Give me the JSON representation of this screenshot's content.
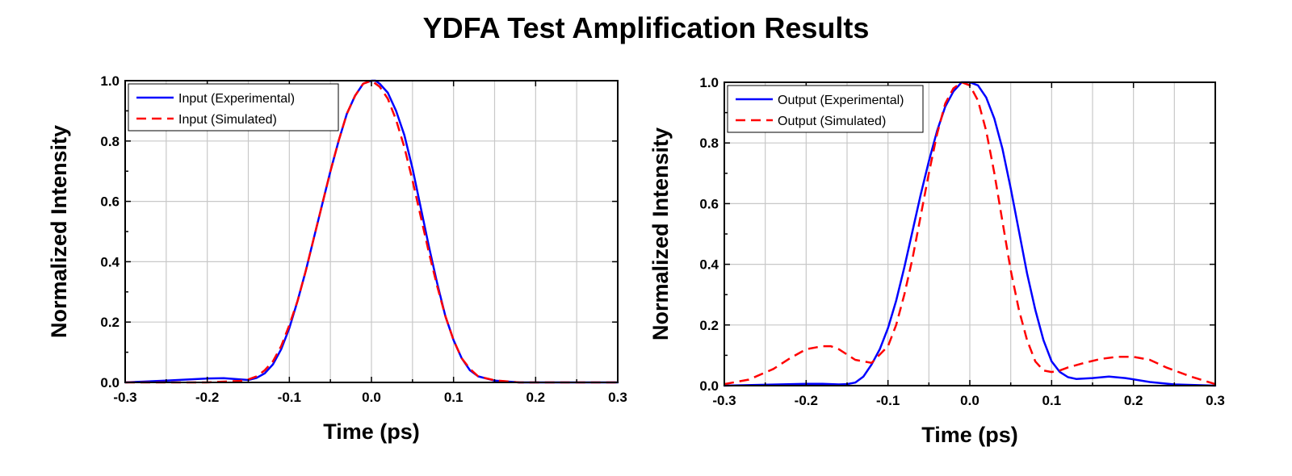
{
  "title": "YDFA Test Amplification Results",
  "chart_data": [
    {
      "type": "line",
      "xlabel": "Time (ps)",
      "ylabel": "Normalized Intensity",
      "xlim": [
        -0.3,
        0.3
      ],
      "ylim": [
        0,
        1.0
      ],
      "xticks": [
        -0.3,
        -0.2,
        -0.1,
        0.0,
        0.1,
        0.2,
        0.3
      ],
      "xtick_labels": [
        "-0.3",
        "-0.2",
        "-0.1",
        "0.0",
        "0.1",
        "0.2",
        "0.3"
      ],
      "yticks": [
        0.0,
        0.2,
        0.4,
        0.6,
        0.8,
        1.0
      ],
      "ytick_labels": [
        "0.0",
        "0.2",
        "0.4",
        "0.6",
        "0.8",
        "1.0"
      ],
      "grid": true,
      "legend_position": "top-left",
      "series": [
        {
          "name": "Input (Experimental)",
          "color": "#0000ff",
          "style": "solid",
          "x": [
            -0.3,
            -0.25,
            -0.2,
            -0.18,
            -0.16,
            -0.15,
            -0.14,
            -0.13,
            -0.12,
            -0.11,
            -0.1,
            -0.09,
            -0.08,
            -0.07,
            -0.06,
            -0.05,
            -0.04,
            -0.03,
            -0.02,
            -0.01,
            0.0,
            0.005,
            0.01,
            0.02,
            0.03,
            0.04,
            0.05,
            0.06,
            0.07,
            0.08,
            0.09,
            0.1,
            0.11,
            0.12,
            0.13,
            0.15,
            0.18,
            0.2,
            0.25,
            0.3
          ],
          "y": [
            0.0,
            0.006,
            0.013,
            0.014,
            0.01,
            0.008,
            0.015,
            0.03,
            0.06,
            0.11,
            0.18,
            0.27,
            0.37,
            0.48,
            0.59,
            0.7,
            0.8,
            0.89,
            0.95,
            0.99,
            1.0,
            1.0,
            0.99,
            0.96,
            0.9,
            0.82,
            0.71,
            0.58,
            0.45,
            0.33,
            0.22,
            0.14,
            0.08,
            0.04,
            0.02,
            0.006,
            0.0,
            0.0,
            0.0,
            0.0
          ]
        },
        {
          "name": "Input (Simulated)",
          "color": "#ff0000",
          "style": "dashed",
          "x": [
            -0.3,
            -0.2,
            -0.16,
            -0.15,
            -0.14,
            -0.13,
            -0.12,
            -0.11,
            -0.1,
            -0.09,
            -0.08,
            -0.07,
            -0.06,
            -0.05,
            -0.04,
            -0.03,
            -0.02,
            -0.01,
            0.0,
            0.01,
            0.02,
            0.03,
            0.04,
            0.05,
            0.06,
            0.07,
            0.08,
            0.09,
            0.1,
            0.11,
            0.12,
            0.13,
            0.15,
            0.18,
            0.2,
            0.25,
            0.3
          ],
          "y": [
            0.0,
            0.0,
            0.005,
            0.01,
            0.02,
            0.04,
            0.07,
            0.12,
            0.19,
            0.27,
            0.37,
            0.48,
            0.59,
            0.7,
            0.8,
            0.89,
            0.95,
            0.99,
            1.0,
            0.98,
            0.94,
            0.87,
            0.78,
            0.67,
            0.55,
            0.43,
            0.32,
            0.22,
            0.14,
            0.08,
            0.045,
            0.02,
            0.007,
            0.0,
            0.0,
            0.0,
            0.0
          ]
        }
      ]
    },
    {
      "type": "line",
      "xlabel": "Time (ps)",
      "ylabel": "Normalized Intensity",
      "xlim": [
        -0.3,
        0.3
      ],
      "ylim": [
        0,
        1.0
      ],
      "xticks": [
        -0.3,
        -0.2,
        -0.1,
        0.0,
        0.1,
        0.2,
        0.3
      ],
      "xtick_labels": [
        "-0.3",
        "-0.2",
        "-0.1",
        "0.0",
        "0.1",
        "0.2",
        "0.3"
      ],
      "yticks": [
        0.0,
        0.2,
        0.4,
        0.6,
        0.8,
        1.0
      ],
      "ytick_labels": [
        "0.0",
        "0.2",
        "0.4",
        "0.6",
        "0.8",
        "1.0"
      ],
      "grid": true,
      "legend_position": "top-left",
      "series": [
        {
          "name": "Output (Experimental)",
          "color": "#0000ff",
          "style": "solid",
          "x": [
            -0.3,
            -0.25,
            -0.2,
            -0.18,
            -0.16,
            -0.15,
            -0.14,
            -0.13,
            -0.12,
            -0.11,
            -0.1,
            -0.09,
            -0.08,
            -0.07,
            -0.06,
            -0.05,
            -0.04,
            -0.03,
            -0.02,
            -0.01,
            0.0,
            0.01,
            0.02,
            0.03,
            0.04,
            0.05,
            0.06,
            0.07,
            0.08,
            0.09,
            0.1,
            0.11,
            0.12,
            0.13,
            0.15,
            0.17,
            0.19,
            0.22,
            0.25,
            0.3
          ],
          "y": [
            0.0,
            0.003,
            0.006,
            0.006,
            0.004,
            0.005,
            0.01,
            0.03,
            0.07,
            0.12,
            0.19,
            0.28,
            0.39,
            0.51,
            0.63,
            0.74,
            0.84,
            0.92,
            0.97,
            1.0,
            1.0,
            0.99,
            0.95,
            0.88,
            0.78,
            0.65,
            0.51,
            0.37,
            0.25,
            0.15,
            0.08,
            0.045,
            0.028,
            0.022,
            0.025,
            0.03,
            0.025,
            0.012,
            0.004,
            0.0
          ]
        },
        {
          "name": "Output (Simulated)",
          "color": "#ff0000",
          "style": "dashed",
          "x": [
            -0.3,
            -0.27,
            -0.24,
            -0.22,
            -0.2,
            -0.18,
            -0.17,
            -0.16,
            -0.14,
            -0.12,
            -0.1,
            -0.09,
            -0.08,
            -0.07,
            -0.06,
            -0.05,
            -0.04,
            -0.03,
            -0.02,
            -0.01,
            0.0,
            0.01,
            0.02,
            0.03,
            0.04,
            0.05,
            0.06,
            0.07,
            0.08,
            0.09,
            0.1,
            0.11,
            0.12,
            0.14,
            0.16,
            0.18,
            0.2,
            0.22,
            0.24,
            0.27,
            0.3
          ],
          "y": [
            0.005,
            0.02,
            0.055,
            0.09,
            0.12,
            0.13,
            0.13,
            0.12,
            0.085,
            0.075,
            0.13,
            0.2,
            0.3,
            0.42,
            0.56,
            0.7,
            0.83,
            0.93,
            0.98,
            1.0,
            0.99,
            0.94,
            0.84,
            0.7,
            0.54,
            0.38,
            0.25,
            0.15,
            0.08,
            0.05,
            0.045,
            0.05,
            0.06,
            0.075,
            0.088,
            0.095,
            0.095,
            0.085,
            0.06,
            0.03,
            0.005
          ]
        }
      ]
    }
  ]
}
